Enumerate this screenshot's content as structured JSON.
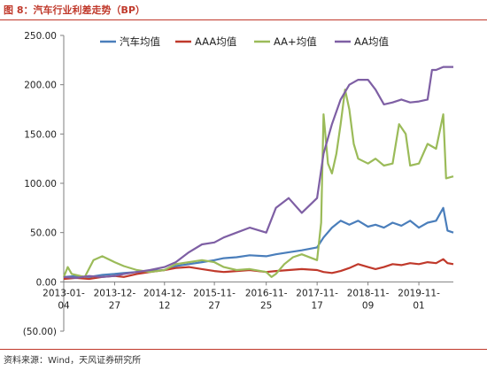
{
  "figure": {
    "title": "图 8：汽车行业利差走势（BP）",
    "source": "资料来源：Wind，天风证券研究所"
  },
  "chart_data": {
    "type": "line",
    "y_ticks": [
      "250.00",
      "200.00",
      "150.00",
      "100.00",
      "50.00",
      "0.00",
      "(50.00)"
    ],
    "y_tick_values": [
      250,
      200,
      150,
      100,
      50,
      0,
      -50
    ],
    "negative_tick_color": "#c0392b",
    "ylim": [
      -50,
      250
    ],
    "x_ticks": [
      {
        "line1": "2013-01-",
        "line2": "04",
        "date": "2013-01-04"
      },
      {
        "line1": "2013-12-",
        "line2": "27",
        "date": "2013-12-27"
      },
      {
        "line1": "2014-12-",
        "line2": "12",
        "date": "2014-12-12"
      },
      {
        "line1": "2015-11-",
        "line2": "27",
        "date": "2015-11-27"
      },
      {
        "line1": "2016-11-",
        "line2": "25",
        "date": "2016-11-25"
      },
      {
        "line1": "2017-11-",
        "line2": "17",
        "date": "2017-11-17"
      },
      {
        "line1": "2018-11-",
        "line2": "09",
        "date": "2018-11-09"
      },
      {
        "line1": "2019-11-",
        "line2": "01",
        "date": "2019-11-01"
      }
    ],
    "x_range": [
      "2013-01-04",
      "2020-06-30"
    ],
    "legend_position": "top",
    "grid": false,
    "series": [
      {
        "name": "汽车均值",
        "color": "#4a7ebb",
        "points": [
          [
            "2013-01-04",
            5
          ],
          [
            "2013-04-01",
            6
          ],
          [
            "2013-07-01",
            5
          ],
          [
            "2013-10-01",
            7
          ],
          [
            "2013-12-27",
            8
          ],
          [
            "2014-03-01",
            9
          ],
          [
            "2014-06-01",
            10
          ],
          [
            "2014-09-01",
            11
          ],
          [
            "2014-12-12",
            12
          ],
          [
            "2015-03-01",
            16
          ],
          [
            "2015-06-01",
            18
          ],
          [
            "2015-09-01",
            20
          ],
          [
            "2015-11-27",
            22
          ],
          [
            "2016-02-01",
            24
          ],
          [
            "2016-05-01",
            25
          ],
          [
            "2016-08-01",
            27
          ],
          [
            "2016-11-25",
            26
          ],
          [
            "2017-02-01",
            28
          ],
          [
            "2017-05-01",
            30
          ],
          [
            "2017-08-01",
            32
          ],
          [
            "2017-11-17",
            35
          ],
          [
            "2018-01-01",
            45
          ],
          [
            "2018-03-01",
            55
          ],
          [
            "2018-05-01",
            62
          ],
          [
            "2018-07-01",
            58
          ],
          [
            "2018-09-01",
            62
          ],
          [
            "2018-11-09",
            56
          ],
          [
            "2019-01-01",
            58
          ],
          [
            "2019-03-01",
            55
          ],
          [
            "2019-05-01",
            60
          ],
          [
            "2019-07-01",
            57
          ],
          [
            "2019-09-01",
            62
          ],
          [
            "2019-11-01",
            55
          ],
          [
            "2020-01-01",
            60
          ],
          [
            "2020-03-01",
            62
          ],
          [
            "2020-04-20",
            75
          ],
          [
            "2020-05-20",
            52
          ],
          [
            "2020-06-30",
            50
          ]
        ]
      },
      {
        "name": "AAA均值",
        "color": "#c0392b",
        "points": [
          [
            "2013-01-04",
            3
          ],
          [
            "2013-04-01",
            4
          ],
          [
            "2013-07-01",
            3
          ],
          [
            "2013-10-01",
            5
          ],
          [
            "2013-12-27",
            6
          ],
          [
            "2014-03-01",
            5
          ],
          [
            "2014-06-01",
            8
          ],
          [
            "2014-09-01",
            10
          ],
          [
            "2014-12-12",
            12
          ],
          [
            "2015-03-01",
            14
          ],
          [
            "2015-06-01",
            15
          ],
          [
            "2015-09-01",
            13
          ],
          [
            "2015-11-27",
            11
          ],
          [
            "2016-02-01",
            10
          ],
          [
            "2016-05-01",
            11
          ],
          [
            "2016-08-01",
            12
          ],
          [
            "2016-11-25",
            10
          ],
          [
            "2017-02-01",
            11
          ],
          [
            "2017-05-01",
            12
          ],
          [
            "2017-08-01",
            13
          ],
          [
            "2017-11-17",
            12
          ],
          [
            "2018-01-01",
            10
          ],
          [
            "2018-03-01",
            9
          ],
          [
            "2018-05-01",
            11
          ],
          [
            "2018-07-01",
            14
          ],
          [
            "2018-09-01",
            18
          ],
          [
            "2018-11-09",
            15
          ],
          [
            "2019-01-01",
            13
          ],
          [
            "2019-03-01",
            15
          ],
          [
            "2019-05-01",
            18
          ],
          [
            "2019-07-01",
            17
          ],
          [
            "2019-09-01",
            19
          ],
          [
            "2019-11-01",
            18
          ],
          [
            "2020-01-01",
            20
          ],
          [
            "2020-03-01",
            19
          ],
          [
            "2020-04-20",
            23
          ],
          [
            "2020-05-20",
            19
          ],
          [
            "2020-06-30",
            18
          ]
        ]
      },
      {
        "name": "AA+均值",
        "color": "#9bbb59",
        "points": [
          [
            "2013-01-04",
            5
          ],
          [
            "2013-02-01",
            15
          ],
          [
            "2013-03-01",
            8
          ],
          [
            "2013-06-01",
            5
          ],
          [
            "2013-08-01",
            22
          ],
          [
            "2013-10-01",
            26
          ],
          [
            "2013-12-27",
            20
          ],
          [
            "2014-03-01",
            16
          ],
          [
            "2014-06-01",
            12
          ],
          [
            "2014-09-01",
            10
          ],
          [
            "2014-12-12",
            12
          ],
          [
            "2015-03-01",
            18
          ],
          [
            "2015-06-01",
            20
          ],
          [
            "2015-09-01",
            22
          ],
          [
            "2015-11-27",
            20
          ],
          [
            "2016-02-01",
            15
          ],
          [
            "2016-05-01",
            12
          ],
          [
            "2016-08-01",
            13
          ],
          [
            "2016-11-25",
            10
          ],
          [
            "2017-01-01",
            5
          ],
          [
            "2017-02-01",
            8
          ],
          [
            "2017-04-01",
            18
          ],
          [
            "2017-06-01",
            25
          ],
          [
            "2017-08-01",
            28
          ],
          [
            "2017-11-17",
            22
          ],
          [
            "2017-12-15",
            60
          ],
          [
            "2018-01-01",
            170
          ],
          [
            "2018-02-01",
            120
          ],
          [
            "2018-03-01",
            110
          ],
          [
            "2018-04-01",
            130
          ],
          [
            "2018-05-01",
            160
          ],
          [
            "2018-06-01",
            195
          ],
          [
            "2018-07-01",
            175
          ],
          [
            "2018-08-01",
            140
          ],
          [
            "2018-09-01",
            125
          ],
          [
            "2018-11-09",
            120
          ],
          [
            "2019-01-01",
            125
          ],
          [
            "2019-03-01",
            118
          ],
          [
            "2019-05-01",
            120
          ],
          [
            "2019-06-15",
            160
          ],
          [
            "2019-08-01",
            150
          ],
          [
            "2019-09-01",
            118
          ],
          [
            "2019-11-01",
            120
          ],
          [
            "2020-01-01",
            140
          ],
          [
            "2020-03-01",
            135
          ],
          [
            "2020-04-20",
            170
          ],
          [
            "2020-05-10",
            105
          ],
          [
            "2020-06-30",
            107
          ]
        ]
      },
      {
        "name": "AA均值",
        "color": "#7e5fa4",
        "points": [
          [
            "2013-01-04",
            5
          ],
          [
            "2013-04-01",
            4
          ],
          [
            "2013-07-01",
            6
          ],
          [
            "2013-10-01",
            5
          ],
          [
            "2013-12-27",
            6
          ],
          [
            "2014-03-01",
            8
          ],
          [
            "2014-06-01",
            10
          ],
          [
            "2014-09-01",
            12
          ],
          [
            "2014-12-12",
            15
          ],
          [
            "2015-03-01",
            20
          ],
          [
            "2015-06-01",
            30
          ],
          [
            "2015-09-01",
            38
          ],
          [
            "2015-11-27",
            40
          ],
          [
            "2016-02-01",
            45
          ],
          [
            "2016-05-01",
            50
          ],
          [
            "2016-08-01",
            55
          ],
          [
            "2016-11-25",
            50
          ],
          [
            "2017-02-01",
            75
          ],
          [
            "2017-05-01",
            85
          ],
          [
            "2017-08-01",
            70
          ],
          [
            "2017-11-17",
            85
          ],
          [
            "2018-01-01",
            130
          ],
          [
            "2018-03-01",
            160
          ],
          [
            "2018-05-01",
            185
          ],
          [
            "2018-07-01",
            200
          ],
          [
            "2018-09-01",
            205
          ],
          [
            "2018-11-09",
            205
          ],
          [
            "2019-01-01",
            195
          ],
          [
            "2019-03-01",
            180
          ],
          [
            "2019-05-01",
            182
          ],
          [
            "2019-07-01",
            185
          ],
          [
            "2019-09-01",
            182
          ],
          [
            "2019-11-01",
            183
          ],
          [
            "2020-01-01",
            185
          ],
          [
            "2020-02-01",
            215
          ],
          [
            "2020-03-01",
            215
          ],
          [
            "2020-04-20",
            218
          ],
          [
            "2020-06-30",
            218
          ]
        ]
      }
    ]
  }
}
